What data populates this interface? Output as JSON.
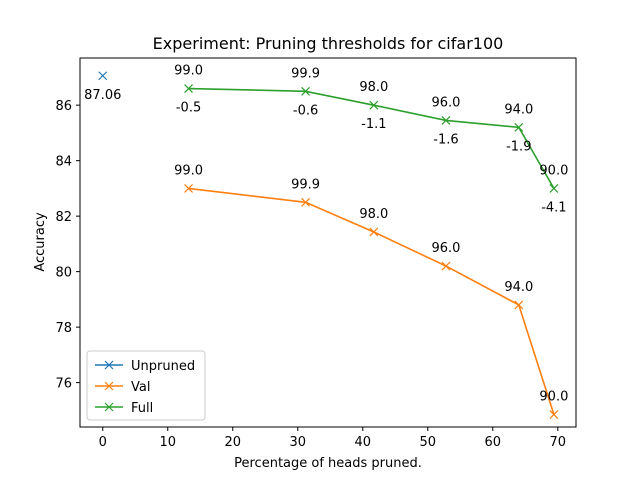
{
  "chart_data": {
    "type": "line",
    "title": "Experiment: Pruning thresholds for cifar100",
    "xlabel": "Percentage of heads pruned.",
    "ylabel": "Accuracy",
    "xlim": [
      -3.5,
      72.8
    ],
    "ylim": [
      74.4,
      87.7
    ],
    "xticks": [
      0,
      10,
      20,
      30,
      40,
      50,
      60,
      70
    ],
    "yticks": [
      76,
      78,
      80,
      82,
      84,
      86
    ],
    "legend_position": "lower-left",
    "grid": false,
    "series": [
      {
        "name": "Unpruned",
        "color": "#1f77b4",
        "points": [
          {
            "x": 0,
            "y": 87.06,
            "label_below": "87.06"
          }
        ]
      },
      {
        "name": "Val",
        "color": "#ff7f0e",
        "points": [
          {
            "x": 13.2,
            "y": 83.0,
            "label_above": "99.0"
          },
          {
            "x": 31.2,
            "y": 82.5,
            "label_above": "99.9"
          },
          {
            "x": 41.7,
            "y": 81.43,
            "label_above": "98.0"
          },
          {
            "x": 52.8,
            "y": 80.2,
            "label_above": "96.0"
          },
          {
            "x": 64.0,
            "y": 78.8,
            "label_above": "94.0"
          },
          {
            "x": 69.4,
            "y": 74.85,
            "label_above": "90.0"
          }
        ]
      },
      {
        "name": "Full",
        "color": "#2ca02c",
        "points": [
          {
            "x": 13.2,
            "y": 86.6,
            "label_above": "99.0",
            "label_below": "-0.5"
          },
          {
            "x": 31.2,
            "y": 86.5,
            "label_above": "99.9",
            "label_below": "-0.6"
          },
          {
            "x": 41.7,
            "y": 86.0,
            "label_above": "98.0",
            "label_below": "-1.1"
          },
          {
            "x": 52.8,
            "y": 85.45,
            "label_above": "96.0",
            "label_below": "-1.6"
          },
          {
            "x": 64.0,
            "y": 85.2,
            "label_above": "94.0",
            "label_below": "-1.9"
          },
          {
            "x": 69.4,
            "y": 83.0,
            "label_above": "90.0",
            "label_below": "-4.1"
          }
        ]
      }
    ]
  }
}
